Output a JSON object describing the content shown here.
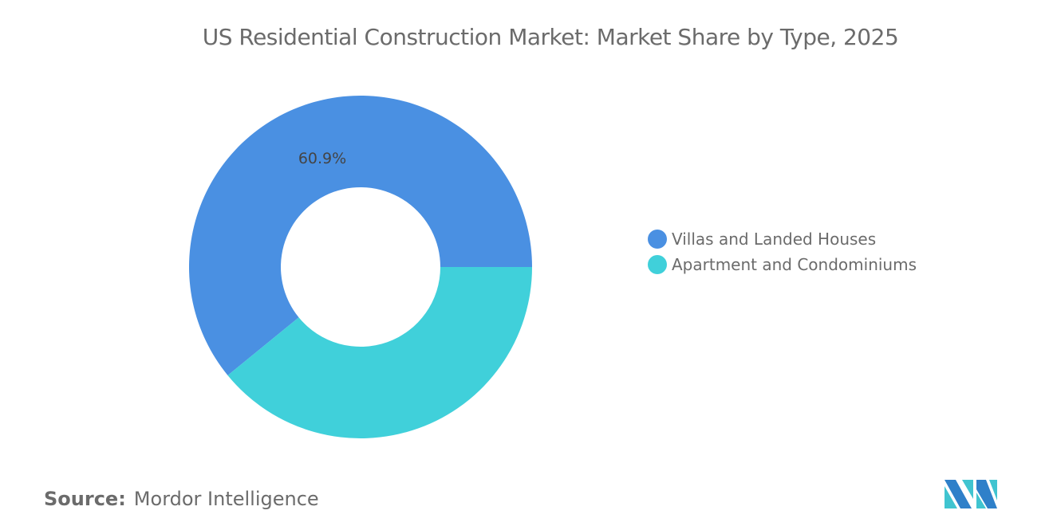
{
  "chart_data": {
    "type": "pie",
    "donut": true,
    "title": "US Residential Construction Market: Market Share by Type, 2025",
    "series": [
      {
        "name": "Villas and Landed Houses",
        "value": 60.9,
        "label": "60.9%",
        "color": "#4a90e2"
      },
      {
        "name": "Apartment and Condominiums",
        "value": 39.1,
        "label": "",
        "color": "#40d0da"
      }
    ],
    "legend_position": "right"
  },
  "source": {
    "label": "Source:",
    "value": "Mordor Intelligence"
  },
  "logo": {
    "text": "Mordor Intelligence",
    "colors": [
      "#2f80c9",
      "#40c4d0"
    ]
  }
}
